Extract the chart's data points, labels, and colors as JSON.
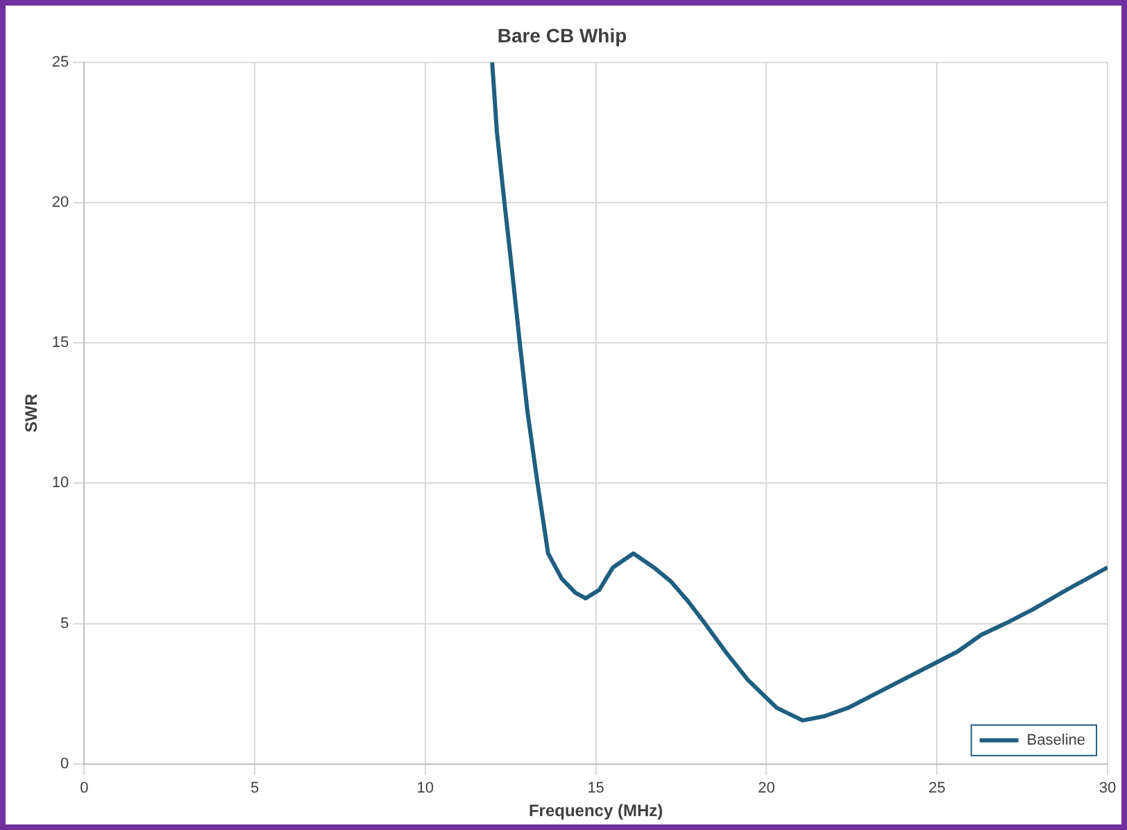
{
  "chart_data": {
    "type": "line",
    "title": "Bare CB Whip",
    "xlabel": "Frequency (MHz)",
    "ylabel": "SWR",
    "series": [
      {
        "name": "Baseline",
        "color": "#1f5f7f",
        "x": [
          11.96,
          12.1,
          12.32,
          12.55,
          12.77,
          13.0,
          13.29,
          13.6,
          14.0,
          14.4,
          14.7,
          15.1,
          15.5,
          16.1,
          16.7,
          17.2,
          17.7,
          18.2,
          18.8,
          19.45,
          20.3,
          21.06,
          21.7,
          22.4,
          23.2,
          24.0,
          24.8,
          25.6,
          26.3,
          27.0,
          27.8,
          28.8,
          30.0
        ],
        "values": [
          25,
          22.5,
          20,
          17.5,
          15,
          12.5,
          10,
          7.5,
          6.6,
          6.1,
          5.9,
          6.2,
          7.0,
          7.5,
          7.0,
          6.5,
          5.8,
          5.0,
          4.0,
          3.0,
          2.0,
          1.55,
          1.7,
          2.0,
          2.5,
          3.0,
          3.5,
          4.0,
          4.6,
          5.0,
          5.5,
          6.2,
          7.0
        ]
      }
    ],
    "xlim": [
      0,
      30
    ],
    "xticks": [
      0,
      5,
      10,
      15,
      20,
      25,
      30
    ],
    "ylim": [
      0,
      25
    ],
    "yticks": [
      0,
      5,
      10,
      15,
      20,
      25
    ],
    "grid": true,
    "legend": "bottom right",
    "marker": "none",
    "line_style": "solid"
  }
}
